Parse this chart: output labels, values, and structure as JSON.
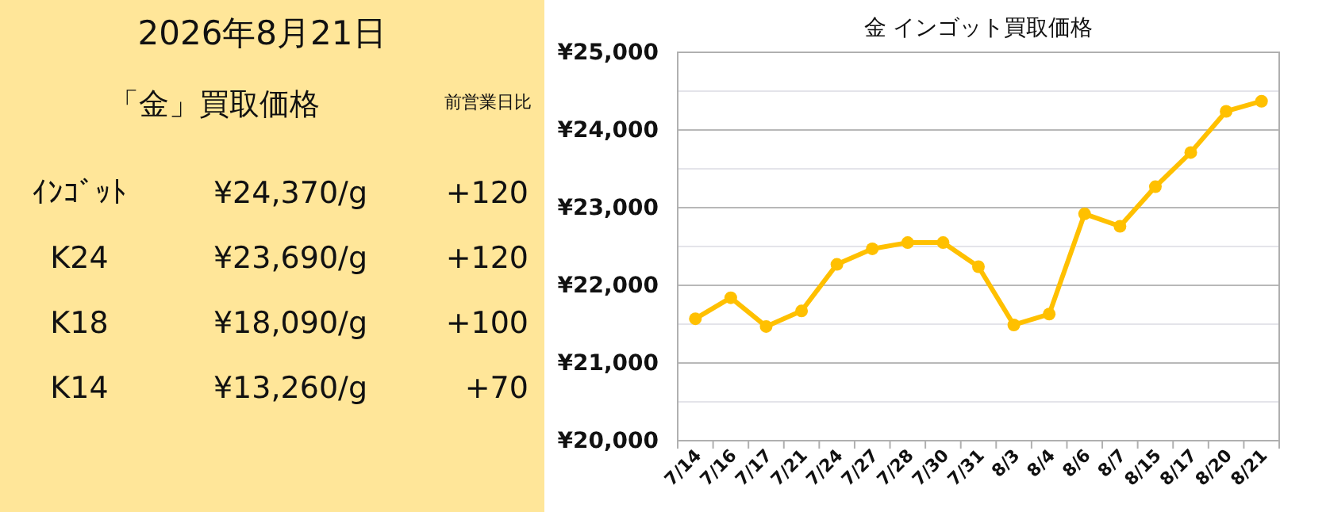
{
  "chart_data": [
    {
      "type": "other",
      "title": "2026年8月21日",
      "subtitle": "「金」買取価格",
      "annotations": [
        "前営業日比",
        "ｲﾝｺﾞｯﾄ",
        "¥24,370/g",
        "+120",
        "K24",
        "¥23,690/g",
        "+120",
        "K18",
        "¥18,090/g",
        "+100",
        "K14",
        "¥13,260/g",
        "+70"
      ]
    },
    {
      "type": "line",
      "title": "金 インゴット買取価格",
      "categories": [
        "7/14",
        "7/16",
        "7/17",
        "7/21",
        "7/24",
        "7/27",
        "7/28",
        "7/30",
        "7/31",
        "8/3",
        "8/4",
        "8/6",
        "8/7",
        "8/15",
        "8/17",
        "8/20",
        "8/21"
      ],
      "series": [
        {
          "color": "#ffc000",
          "values": [
            21570,
            21840,
            21470,
            21670,
            22270,
            22470,
            22550,
            22550,
            22240,
            21490,
            21630,
            22920,
            22760,
            23270,
            23710,
            24240,
            24370
          ]
        }
      ],
      "ylim": [
        20000,
        25000
      ],
      "yticks": [
        {
          "value": 20000,
          "label": "¥20,000"
        },
        {
          "value": 20500,
          "label": null
        },
        {
          "value": 21000,
          "label": "¥21,000"
        },
        {
          "value": 21500,
          "label": null
        },
        {
          "value": 22000,
          "label": "¥22,000"
        },
        {
          "value": 22500,
          "label": null
        },
        {
          "value": 23000,
          "label": "¥23,000"
        },
        {
          "value": 23500,
          "label": null
        },
        {
          "value": 24000,
          "label": "¥24,000"
        },
        {
          "value": 24500,
          "label": null
        },
        {
          "value": 25000,
          "label": "¥25,000"
        }
      ],
      "grid": "y",
      "marker": "circle",
      "line_style": "solid"
    }
  ]
}
